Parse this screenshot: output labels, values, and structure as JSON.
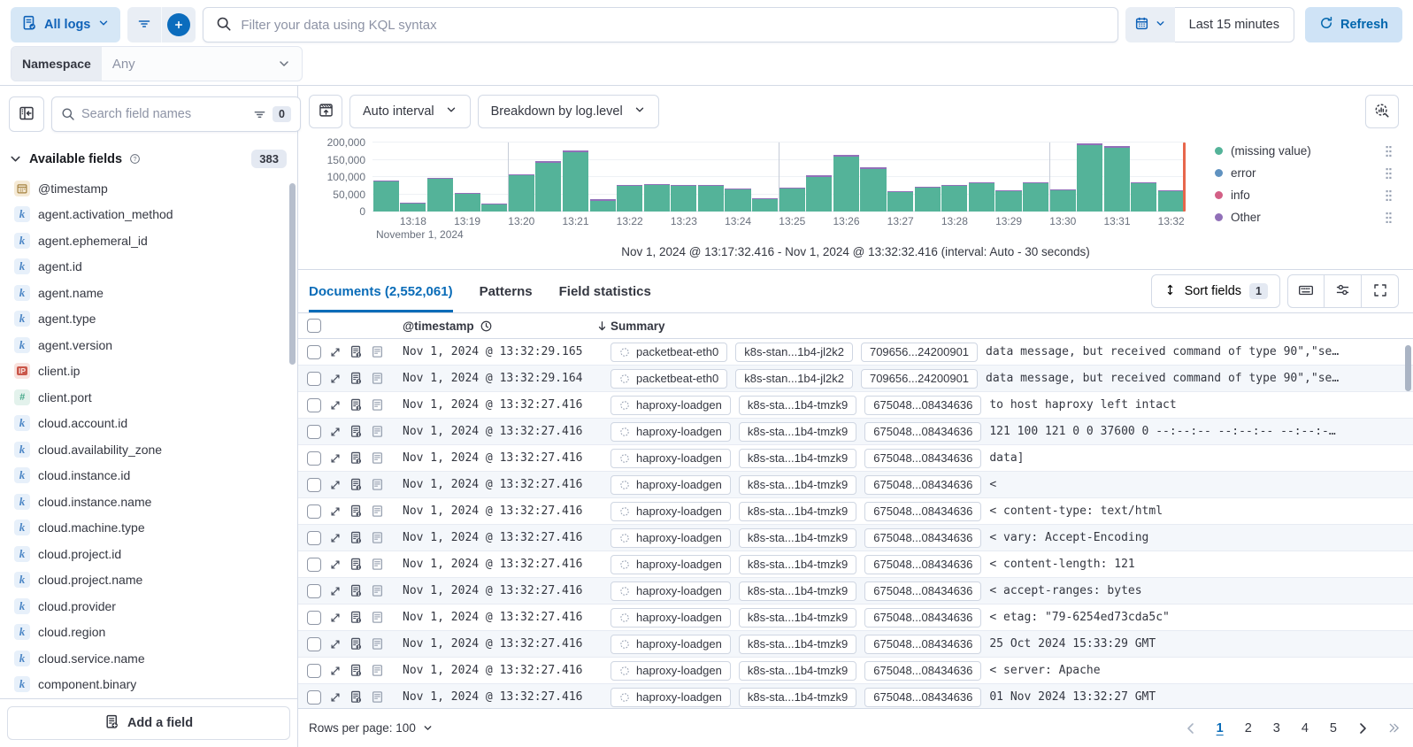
{
  "colors": {
    "accent_blue": "#0b6cbd",
    "teal": "#54b399",
    "purple": "#9170b8",
    "series_blue": "#6092c0",
    "pink": "#d36086",
    "red_time_marker": "#e7664c"
  },
  "icons": {
    "topbar": [
      "logs-icon",
      "filter-icon",
      "plus-icon",
      "search-icon",
      "calendar-icon",
      "refresh-icon"
    ],
    "sidebar": [
      "collapse-panel-icon",
      "search-icon",
      "filter-icon",
      "help-icon",
      "add-field-icon"
    ],
    "chart": [
      "hide-chart-icon",
      "explore-lens-icon",
      "legend-grip-icon"
    ],
    "grid": [
      "sort-icon",
      "keyboard-icon",
      "display-options-icon",
      "fullscreen-icon",
      "clock-icon",
      "sort-desc-arrow-icon",
      "expand-icon",
      "degraded-doc-icon",
      "stacktrace-icon",
      "dashed-circle-icon"
    ]
  },
  "topbar": {
    "source_label": "All logs",
    "kql_placeholder": "Filter your data using KQL syntax",
    "time_range": "Last 15 minutes",
    "refresh_label": "Refresh"
  },
  "namespace": {
    "label": "Namespace",
    "value": "Any"
  },
  "sidebar": {
    "search_placeholder": "Search field names",
    "filter_badge": "0",
    "section_title": "Available fields",
    "count_badge": "383",
    "fields": [
      {
        "name": "@timestamp",
        "type": "date"
      },
      {
        "name": "agent.activation_method",
        "type": "keyword"
      },
      {
        "name": "agent.ephemeral_id",
        "type": "keyword"
      },
      {
        "name": "agent.id",
        "type": "keyword"
      },
      {
        "name": "agent.name",
        "type": "keyword"
      },
      {
        "name": "agent.type",
        "type": "keyword"
      },
      {
        "name": "agent.version",
        "type": "keyword"
      },
      {
        "name": "client.ip",
        "type": "ip"
      },
      {
        "name": "client.port",
        "type": "number"
      },
      {
        "name": "cloud.account.id",
        "type": "keyword"
      },
      {
        "name": "cloud.availability_zone",
        "type": "keyword"
      },
      {
        "name": "cloud.instance.id",
        "type": "keyword"
      },
      {
        "name": "cloud.instance.name",
        "type": "keyword"
      },
      {
        "name": "cloud.machine.type",
        "type": "keyword"
      },
      {
        "name": "cloud.project.id",
        "type": "keyword"
      },
      {
        "name": "cloud.project.name",
        "type": "keyword"
      },
      {
        "name": "cloud.provider",
        "type": "keyword"
      },
      {
        "name": "cloud.region",
        "type": "keyword"
      },
      {
        "name": "cloud.service.name",
        "type": "keyword"
      },
      {
        "name": "component.binary",
        "type": "keyword"
      }
    ],
    "add_field_label": "Add a field"
  },
  "chart_controls": {
    "interval": "Auto interval",
    "breakdown": "Breakdown by log.level"
  },
  "chart_data": {
    "type": "bar",
    "stacked": true,
    "x": [
      "13:17:30",
      "13:18:00",
      "13:18:30",
      "13:19:00",
      "13:19:30",
      "13:20:00",
      "13:20:30",
      "13:21:00",
      "13:21:30",
      "13:22:00",
      "13:22:30",
      "13:23:00",
      "13:23:30",
      "13:24:00",
      "13:24:30",
      "13:25:00",
      "13:25:30",
      "13:26:00",
      "13:26:30",
      "13:27:00",
      "13:27:30",
      "13:28:00",
      "13:28:30",
      "13:29:00",
      "13:29:30",
      "13:30:00",
      "13:30:30",
      "13:31:00",
      "13:31:30",
      "13:32:00"
    ],
    "series": [
      {
        "name": "(missing value)",
        "color": "#54b399",
        "values": [
          86000,
          23000,
          94000,
          52000,
          21000,
          104000,
          142000,
          173000,
          32000,
          74000,
          76000,
          74000,
          74000,
          65000,
          35000,
          66000,
          101000,
          160000,
          124000,
          57000,
          68000,
          74000,
          81000,
          59000,
          81000,
          62000,
          193000,
          185000,
          81000,
          59000
        ]
      },
      {
        "name": "Other",
        "color": "#9170b8",
        "values": [
          4000,
          2000,
          4000,
          3000,
          2000,
          4000,
          5000,
          5000,
          3000,
          4000,
          4000,
          4000,
          4000,
          3000,
          3000,
          4000,
          4000,
          5000,
          4000,
          3000,
          4000,
          4000,
          4000,
          3000,
          4000,
          3000,
          5000,
          5000,
          4000,
          3000
        ]
      }
    ],
    "legend": [
      {
        "label": "(missing value)",
        "color": "#54b399"
      },
      {
        "label": "error",
        "color": "#6092c0"
      },
      {
        "label": "info",
        "color": "#d36086"
      },
      {
        "label": "Other",
        "color": "#9170b8"
      }
    ],
    "ylim": [
      0,
      200000
    ],
    "yticks": [
      0,
      50000,
      100000,
      150000,
      200000
    ],
    "ytick_labels": [
      "0",
      "50,000",
      "100,000",
      "150,000",
      "200,000"
    ],
    "xtick_labels": [
      "13:18",
      "13:19",
      "13:20",
      "13:21",
      "13:22",
      "13:23",
      "13:24",
      "13:25",
      "13:26",
      "13:27",
      "13:28",
      "13:29",
      "13:30",
      "13:31",
      "13:32"
    ],
    "major_gridline_labels": [
      "13:20",
      "13:25",
      "13:30"
    ],
    "x_date_label": "November 1, 2024",
    "grid": true,
    "legend_position": "right",
    "caption": "Nov 1, 2024 @ 13:17:32.416 - Nov 1, 2024 @ 13:32:32.416 (interval: Auto - 30 seconds)"
  },
  "tabs": {
    "documents": "Documents (2,552,061)",
    "patterns": "Patterns",
    "field_stats": "Field statistics"
  },
  "grid_toolbar": {
    "sort_label": "Sort fields",
    "sort_badge": "1"
  },
  "table": {
    "timestamp_header": "@timestamp",
    "summary_header": "Summary",
    "rows": [
      {
        "timestamp": "Nov 1, 2024 @ 13:32:29.165",
        "badges": [
          "packetbeat-eth0",
          "k8s-stan...1b4-jl2k2",
          "709656...24200901"
        ],
        "message": "data message, but received command of type 90\",\"se…"
      },
      {
        "timestamp": "Nov 1, 2024 @ 13:32:29.164",
        "badges": [
          "packetbeat-eth0",
          "k8s-stan...1b4-jl2k2",
          "709656...24200901"
        ],
        "message": "data message, but received command of type 90\",\"se…"
      },
      {
        "timestamp": "Nov 1, 2024 @ 13:32:27.416",
        "badges": [
          "haproxy-loadgen",
          "k8s-sta...1b4-tmzk9",
          "675048...08434636"
        ],
        "message": "to host haproxy left intact"
      },
      {
        "timestamp": "Nov 1, 2024 @ 13:32:27.416",
        "badges": [
          "haproxy-loadgen",
          "k8s-sta...1b4-tmzk9",
          "675048...08434636"
        ],
        "message": "121 100 121 0 0 37600 0 --:--:-- --:--:-- --:--:-…"
      },
      {
        "timestamp": "Nov 1, 2024 @ 13:32:27.416",
        "badges": [
          "haproxy-loadgen",
          "k8s-sta...1b4-tmzk9",
          "675048...08434636"
        ],
        "message": "data]"
      },
      {
        "timestamp": "Nov 1, 2024 @ 13:32:27.416",
        "badges": [
          "haproxy-loadgen",
          "k8s-sta...1b4-tmzk9",
          "675048...08434636"
        ],
        "message": "<"
      },
      {
        "timestamp": "Nov 1, 2024 @ 13:32:27.416",
        "badges": [
          "haproxy-loadgen",
          "k8s-sta...1b4-tmzk9",
          "675048...08434636"
        ],
        "message": "< content-type: text/html"
      },
      {
        "timestamp": "Nov 1, 2024 @ 13:32:27.416",
        "badges": [
          "haproxy-loadgen",
          "k8s-sta...1b4-tmzk9",
          "675048...08434636"
        ],
        "message": "< vary: Accept-Encoding"
      },
      {
        "timestamp": "Nov 1, 2024 @ 13:32:27.416",
        "badges": [
          "haproxy-loadgen",
          "k8s-sta...1b4-tmzk9",
          "675048...08434636"
        ],
        "message": "< content-length: 121"
      },
      {
        "timestamp": "Nov 1, 2024 @ 13:32:27.416",
        "badges": [
          "haproxy-loadgen",
          "k8s-sta...1b4-tmzk9",
          "675048...08434636"
        ],
        "message": "< accept-ranges: bytes"
      },
      {
        "timestamp": "Nov 1, 2024 @ 13:32:27.416",
        "badges": [
          "haproxy-loadgen",
          "k8s-sta...1b4-tmzk9",
          "675048...08434636"
        ],
        "message": "< etag: \"79-6254ed73cda5c\""
      },
      {
        "timestamp": "Nov 1, 2024 @ 13:32:27.416",
        "badges": [
          "haproxy-loadgen",
          "k8s-sta...1b4-tmzk9",
          "675048...08434636"
        ],
        "message": "25 Oct 2024 15:33:29 GMT"
      },
      {
        "timestamp": "Nov 1, 2024 @ 13:32:27.416",
        "badges": [
          "haproxy-loadgen",
          "k8s-sta...1b4-tmzk9",
          "675048...08434636"
        ],
        "message": "< server: Apache"
      },
      {
        "timestamp": "Nov 1, 2024 @ 13:32:27.416",
        "badges": [
          "haproxy-loadgen",
          "k8s-sta...1b4-tmzk9",
          "675048...08434636"
        ],
        "message": "01 Nov 2024 13:32:27 GMT"
      }
    ]
  },
  "footer": {
    "rows_per_page": "Rows per page: 100",
    "pages": [
      "1",
      "2",
      "3",
      "4",
      "5"
    ],
    "active_page": "1"
  }
}
